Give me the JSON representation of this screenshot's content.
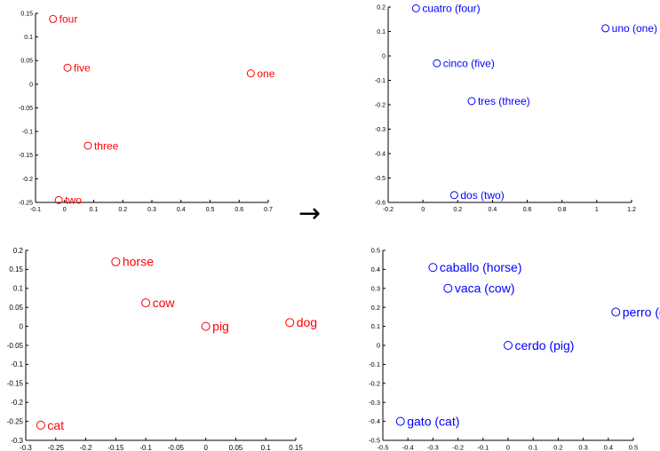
{
  "arrow_text": "→",
  "colors": {
    "english": "#ff0000",
    "spanish": "#0000ff",
    "axis": "#000000"
  },
  "chart_data": [
    {
      "type": "scatter",
      "title": "",
      "xlabel": "",
      "ylabel": "",
      "xlim": [
        -0.1,
        0.7
      ],
      "ylim": [
        -0.25,
        0.15
      ],
      "xticks": [
        -0.1,
        0,
        0.1,
        0.2,
        0.3,
        0.4,
        0.5,
        0.6,
        0.7
      ],
      "yticks": [
        -0.25,
        -0.2,
        -0.15,
        -0.1,
        -0.05,
        0,
        0.05,
        0.1,
        0.15
      ],
      "x_tick_labels": [
        "-0.1",
        "0",
        "0.1",
        "0.2",
        "0.3",
        "0.4",
        "0.5",
        "0.6",
        "0.7"
      ],
      "y_tick_labels": [
        "-0.25",
        "-0.2",
        "-0.15",
        "-0.1",
        "-0.05",
        "0",
        "0.05",
        "0.1",
        "0.15"
      ],
      "grid": false,
      "marker": "circle",
      "color": "#ff0000",
      "points": [
        {
          "label": "four",
          "x": -0.04,
          "y": 0.138
        },
        {
          "label": "five",
          "x": 0.01,
          "y": 0.035
        },
        {
          "label": "one",
          "x": 0.64,
          "y": 0.023
        },
        {
          "label": "three",
          "x": 0.08,
          "y": -0.13
        },
        {
          "label": "two",
          "x": -0.02,
          "y": -0.245
        }
      ]
    },
    {
      "type": "scatter",
      "title": "",
      "xlabel": "",
      "ylabel": "",
      "xlim": [
        -0.2,
        1.2
      ],
      "ylim": [
        -0.6,
        0.2
      ],
      "xticks": [
        -0.2,
        0,
        0.2,
        0.4,
        0.6,
        0.8,
        1,
        1.2
      ],
      "yticks": [
        -0.6,
        -0.5,
        -0.4,
        -0.3,
        -0.2,
        -0.1,
        0,
        0.1,
        0.2
      ],
      "x_tick_labels": [
        "-0.2",
        "0",
        "0.2",
        "0.4",
        "0.6",
        "0.8",
        "1",
        "1.2"
      ],
      "y_tick_labels": [
        "-0.6",
        "-0.5",
        "-0.4",
        "-0.3",
        "-0.2",
        "-0.1",
        "0",
        "0.1",
        "0.2"
      ],
      "grid": false,
      "marker": "circle",
      "color": "#0000ff",
      "points": [
        {
          "label": "cuatro (four)",
          "x": -0.04,
          "y": 0.195
        },
        {
          "label": "uno (one)",
          "x": 1.05,
          "y": 0.113
        },
        {
          "label": "cinco (five)",
          "x": 0.08,
          "y": -0.03
        },
        {
          "label": "tres (three)",
          "x": 0.28,
          "y": -0.185
        },
        {
          "label": "dos (two)",
          "x": 0.18,
          "y": -0.57
        }
      ]
    },
    {
      "type": "scatter",
      "title": "",
      "xlabel": "",
      "ylabel": "",
      "xlim": [
        -0.3,
        0.15
      ],
      "ylim": [
        -0.3,
        0.2
      ],
      "xticks": [
        -0.3,
        -0.25,
        -0.2,
        -0.15,
        -0.1,
        -0.05,
        0,
        0.05,
        0.1,
        0.15
      ],
      "yticks": [
        -0.3,
        -0.25,
        -0.2,
        -0.15,
        -0.1,
        -0.05,
        0,
        0.05,
        0.1,
        0.15,
        0.2
      ],
      "x_tick_labels": [
        "-0.3",
        "-0.25",
        "-0.2",
        "-0.15",
        "-0.1",
        "-0.05",
        "0",
        "0.05",
        "0.1",
        "0.15"
      ],
      "y_tick_labels": [
        "-0.3",
        "-0.25",
        "-0.2",
        "-0.15",
        "-0.1",
        "-0.05",
        "0",
        "0.05",
        "0.1",
        "0.15",
        "0.2"
      ],
      "grid": false,
      "marker": "circle",
      "color": "#ff0000",
      "points": [
        {
          "label": "horse",
          "x": -0.15,
          "y": 0.17
        },
        {
          "label": "cow",
          "x": -0.1,
          "y": 0.062
        },
        {
          "label": "pig",
          "x": 0.0,
          "y": 0.0
        },
        {
          "label": "dog",
          "x": 0.14,
          "y": 0.01
        },
        {
          "label": "cat",
          "x": -0.275,
          "y": -0.26
        }
      ]
    },
    {
      "type": "scatter",
      "title": "",
      "xlabel": "",
      "ylabel": "",
      "xlim": [
        -0.5,
        0.5
      ],
      "ylim": [
        -0.5,
        0.5
      ],
      "xticks": [
        -0.5,
        -0.4,
        -0.3,
        -0.2,
        -0.1,
        0,
        0.1,
        0.2,
        0.3,
        0.4,
        0.5
      ],
      "yticks": [
        -0.5,
        -0.4,
        -0.3,
        -0.2,
        -0.1,
        0,
        0.1,
        0.2,
        0.3,
        0.4,
        0.5
      ],
      "x_tick_labels": [
        "-0.5",
        "-0.4",
        "-0.3",
        "-0.2",
        "-0.1",
        "0",
        "0.1",
        "0.2",
        "0.3",
        "0.4",
        "0.5"
      ],
      "y_tick_labels": [
        "-0.5",
        "-0.4",
        "-0.3",
        "-0.2",
        "-0.1",
        "0",
        "0.1",
        "0.2",
        "0.3",
        "0.4",
        "0.5"
      ],
      "grid": false,
      "marker": "circle",
      "color": "#0000ff",
      "points": [
        {
          "label": "caballo (horse)",
          "x": -0.3,
          "y": 0.41
        },
        {
          "label": "vaca (cow)",
          "x": -0.24,
          "y": 0.3
        },
        {
          "label": "perro (dog)",
          "x": 0.43,
          "y": 0.175
        },
        {
          "label": "cerdo (pig)",
          "x": 0.0,
          "y": 0.0
        },
        {
          "label": "gato (cat)",
          "x": -0.43,
          "y": -0.4
        }
      ]
    }
  ]
}
